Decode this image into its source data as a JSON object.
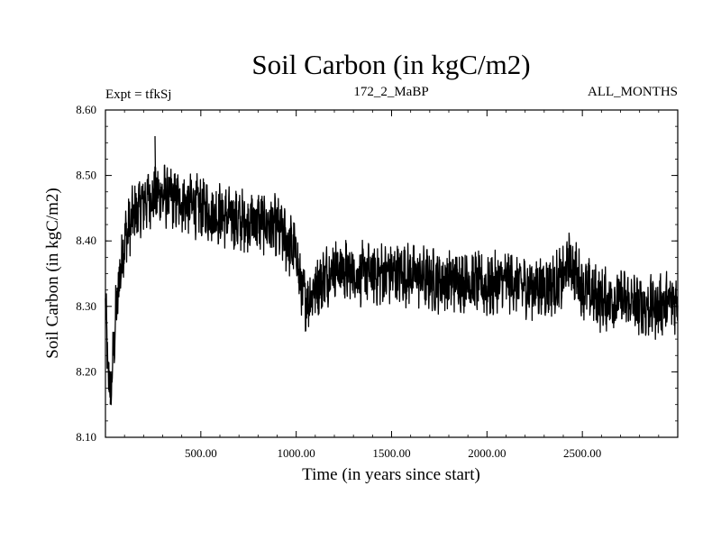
{
  "chart_data": {
    "type": "line",
    "title": "Soil Carbon (in kgC/m2)",
    "subtitle_left": "Expt = tfkSj",
    "subtitle_center": "172_2_MaBP",
    "subtitle_right": "ALL_MONTHS",
    "xlabel": "Time (in years since start)",
    "ylabel": "Soil Carbon (in kgC/m2)",
    "xlim": [
      0,
      3000
    ],
    "ylim": [
      8.1,
      8.6
    ],
    "xticks": [
      500,
      1000,
      1500,
      2000,
      2500
    ],
    "xtick_labels": [
      "500.00",
      "1000.00",
      "1500.00",
      "2000.00",
      "2500.00"
    ],
    "yticks": [
      8.1,
      8.2,
      8.3,
      8.4,
      8.5,
      8.6
    ],
    "ytick_labels": [
      "8.10",
      "8.20",
      "8.30",
      "8.40",
      "8.50",
      "8.60"
    ],
    "series": [
      {
        "name": "Soil Carbon",
        "color": "#000000",
        "x": [
          0,
          15,
          30,
          50,
          75,
          100,
          150,
          200,
          250,
          300,
          400,
          500,
          600,
          700,
          800,
          900,
          1000,
          1030,
          1060,
          1100,
          1200,
          1300,
          1400,
          1500,
          1600,
          1700,
          1800,
          1900,
          2000,
          2100,
          2200,
          2300,
          2400,
          2430,
          2500,
          2600,
          2700,
          2800,
          2900,
          3000
        ],
        "values": [
          8.3,
          8.19,
          8.17,
          8.27,
          8.35,
          8.4,
          8.44,
          8.46,
          8.47,
          8.47,
          8.46,
          8.45,
          8.44,
          8.43,
          8.43,
          8.42,
          8.38,
          8.32,
          8.31,
          8.33,
          8.36,
          8.35,
          8.35,
          8.35,
          8.35,
          8.34,
          8.34,
          8.34,
          8.33,
          8.34,
          8.33,
          8.33,
          8.34,
          8.37,
          8.33,
          8.31,
          8.31,
          8.3,
          8.3,
          8.31
        ],
        "noise_amplitude": 0.05,
        "extremes": {
          "max": 8.56,
          "max_x": 260,
          "min": 8.15,
          "min_x": 25
        }
      }
    ]
  }
}
